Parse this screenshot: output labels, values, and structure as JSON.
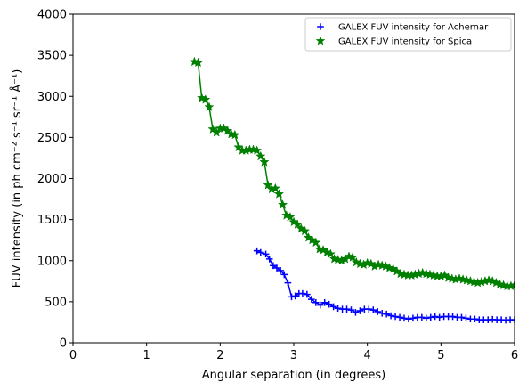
{
  "chart_data": {
    "type": "line",
    "xlabel": "Angular separation (in degrees)",
    "ylabel": "FUV intensity (in ph cm⁻² s⁻¹ sr⁻¹ Å⁻¹)",
    "xlim": [
      0,
      6
    ],
    "ylim": [
      0,
      4000
    ],
    "xticks": [
      "0",
      "1",
      "2",
      "3",
      "4",
      "5",
      "6"
    ],
    "yticks": [
      "0",
      "500",
      "1000",
      "1500",
      "2000",
      "2500",
      "3000",
      "3500",
      "4000"
    ],
    "grid": false,
    "legend_position": "top-right",
    "series": [
      {
        "name": "GALEX FUV intensity for Achernar",
        "color": "#0000ff",
        "marker": "plus",
        "x": [
          2.5,
          2.55,
          2.62,
          2.67,
          2.72,
          2.77,
          2.82,
          2.87,
          2.92,
          2.97,
          3.02,
          3.07,
          3.12,
          3.18,
          3.24,
          3.3,
          3.36,
          3.42,
          3.48,
          3.54,
          3.6,
          3.66,
          3.72,
          3.78,
          3.84,
          3.9,
          3.96,
          4.02,
          4.08,
          4.14,
          4.2,
          4.26,
          4.32,
          4.38,
          4.44,
          4.5,
          4.56,
          4.62,
          4.68,
          4.74,
          4.8,
          4.86,
          4.92,
          4.98,
          5.04,
          5.1,
          5.16,
          5.22,
          5.28,
          5.34,
          5.4,
          5.46,
          5.52,
          5.58,
          5.64,
          5.7,
          5.76,
          5.82,
          5.88,
          5.94,
          6.0
        ],
        "y": [
          1120,
          1100,
          1080,
          1020,
          940,
          910,
          880,
          830,
          730,
          560,
          570,
          600,
          600,
          590,
          530,
          490,
          460,
          490,
          470,
          440,
          420,
          410,
          410,
          400,
          370,
          390,
          410,
          410,
          400,
          380,
          360,
          350,
          330,
          320,
          310,
          300,
          290,
          300,
          310,
          310,
          300,
          310,
          320,
          310,
          320,
          320,
          320,
          310,
          310,
          300,
          290,
          290,
          280,
          280,
          280,
          285,
          280,
          280,
          275,
          280,
          280
        ]
      },
      {
        "name": "GALEX FUV intensity for Spica",
        "color": "#008000",
        "marker": "star",
        "x": [
          1.65,
          1.7,
          1.75,
          1.8,
          1.85,
          1.9,
          1.95,
          2.0,
          2.05,
          2.1,
          2.15,
          2.2,
          2.25,
          2.3,
          2.35,
          2.4,
          2.45,
          2.5,
          2.55,
          2.6,
          2.65,
          2.7,
          2.75,
          2.8,
          2.85,
          2.9,
          2.95,
          3.0,
          3.05,
          3.1,
          3.15,
          3.2,
          3.25,
          3.3,
          3.35,
          3.4,
          3.45,
          3.5,
          3.55,
          3.6,
          3.65,
          3.7,
          3.75,
          3.8,
          3.85,
          3.9,
          3.95,
          4.0,
          4.05,
          4.1,
          4.15,
          4.2,
          4.25,
          4.3,
          4.35,
          4.4,
          4.45,
          4.5,
          4.55,
          4.6,
          4.65,
          4.7,
          4.75,
          4.8,
          4.85,
          4.9,
          4.95,
          5.0,
          5.05,
          5.1,
          5.15,
          5.2,
          5.25,
          5.3,
          5.35,
          5.4,
          5.45,
          5.5,
          5.55,
          5.6,
          5.65,
          5.7,
          5.75,
          5.8,
          5.85,
          5.9,
          5.95,
          6.0
        ],
        "y": [
          3420,
          3410,
          2980,
          2960,
          2870,
          2600,
          2560,
          2610,
          2610,
          2580,
          2540,
          2530,
          2380,
          2340,
          2340,
          2350,
          2350,
          2340,
          2270,
          2200,
          1920,
          1870,
          1880,
          1810,
          1680,
          1550,
          1530,
          1470,
          1440,
          1390,
          1360,
          1280,
          1250,
          1220,
          1140,
          1130,
          1100,
          1080,
          1020,
          1010,
          1000,
          1020,
          1050,
          1040,
          980,
          960,
          950,
          970,
          960,
          930,
          950,
          940,
          930,
          910,
          900,
          870,
          840,
          830,
          820,
          820,
          830,
          840,
          850,
          840,
          830,
          820,
          810,
          810,
          820,
          790,
          780,
          770,
          780,
          770,
          760,
          750,
          740,
          730,
          740,
          750,
          760,
          750,
          730,
          710,
          700,
          690,
          690,
          700
        ]
      }
    ]
  }
}
